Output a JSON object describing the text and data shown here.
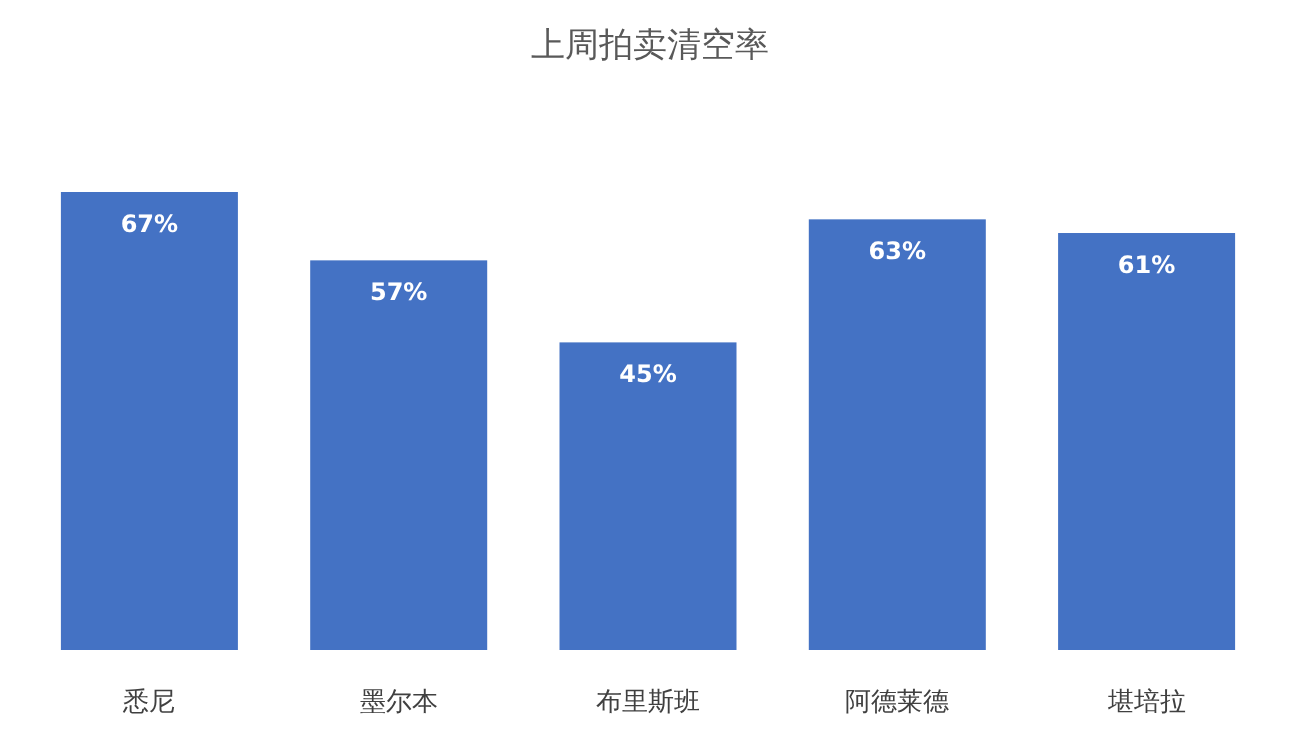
{
  "chart_data": {
    "type": "bar",
    "title": "上周拍卖清空率",
    "categories": [
      "悉尼",
      "墨尔本",
      "布里斯班",
      "阿德莱德",
      "堪培拉"
    ],
    "values": [
      67,
      57,
      45,
      63,
      61
    ],
    "value_labels": [
      "67%",
      "57%",
      "45%",
      "63%",
      "61%"
    ],
    "color": "#4472c4"
  }
}
